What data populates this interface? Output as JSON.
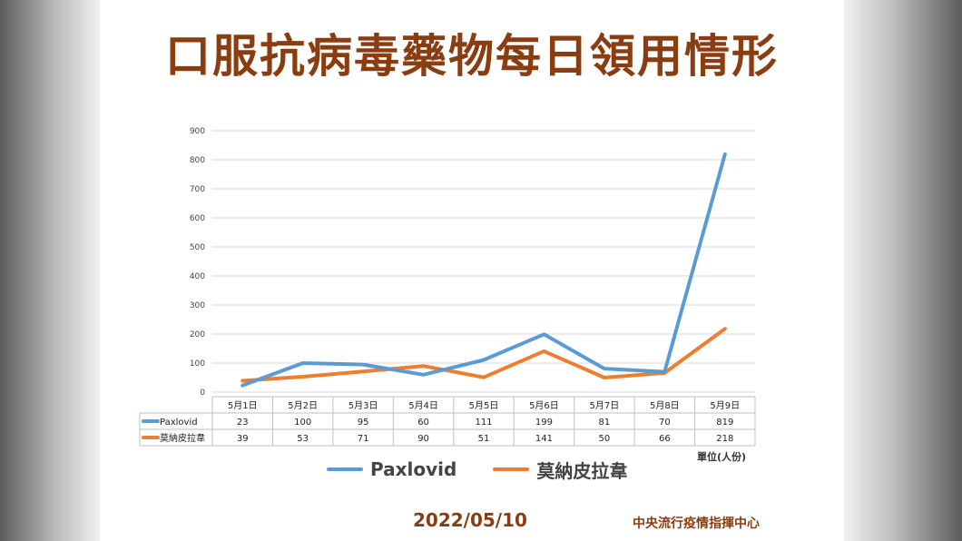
{
  "title": "口服抗病毒藥物每日領用情形",
  "unit_label": "單位(人份)",
  "date": "2022/05/10",
  "source": "中央流行疫情指揮中心",
  "colors": {
    "paxlovid": "#5b9bd5",
    "molnupiravir": "#ed7d31",
    "title": "#8a3d10"
  },
  "chart_data": {
    "type": "line",
    "categories": [
      "5月1日",
      "5月2日",
      "5月3日",
      "5月4日",
      "5月5日",
      "5月6日",
      "5月7日",
      "5月8日",
      "5月9日"
    ],
    "series": [
      {
        "name": "Paxlovid",
        "values": [
          23,
          100,
          95,
          60,
          111,
          199,
          81,
          70,
          819
        ]
      },
      {
        "name": "莫納皮拉韋",
        "values": [
          39,
          53,
          71,
          90,
          51,
          141,
          50,
          66,
          218
        ]
      }
    ],
    "ylim": [
      0,
      900
    ],
    "yticks": [
      0,
      100,
      200,
      300,
      400,
      500,
      600,
      700,
      800,
      900
    ],
    "grid": true,
    "legend_position": "bottom",
    "data_table": true
  }
}
